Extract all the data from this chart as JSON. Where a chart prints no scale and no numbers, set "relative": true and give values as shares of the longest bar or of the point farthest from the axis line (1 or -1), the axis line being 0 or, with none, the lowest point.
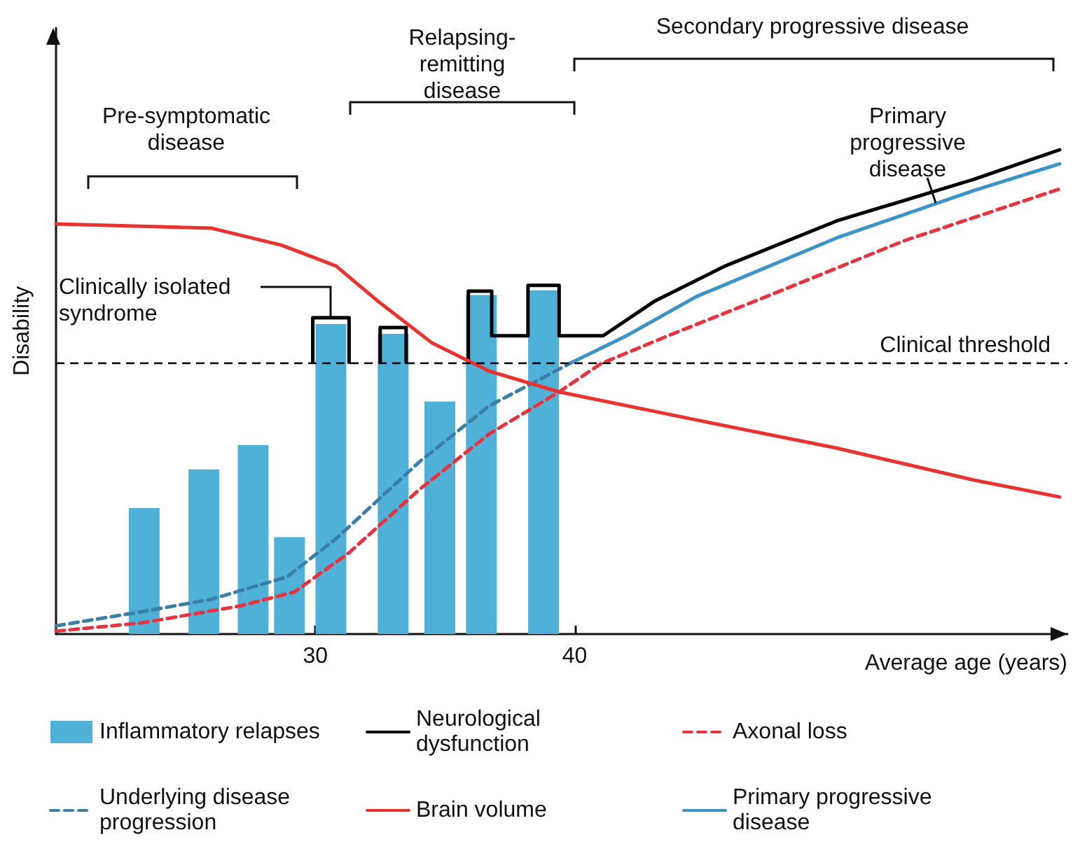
{
  "chart_data": {
    "type": "line",
    "relative": true,
    "ylabel": "Disability",
    "xlabel": "Average age (years)",
    "xlim": [
      20,
      59
    ],
    "xticks": [
      30,
      40
    ],
    "marker": "none",
    "legend": "bottom",
    "series": [
      {
        "name": "Inflammatory relapses",
        "type": "bar",
        "color": "#4fb0d8",
        "x": [
          23.4,
          25.7,
          27.6,
          29.0,
          30.6,
          33.0,
          34.8,
          36.4,
          38.8
        ],
        "values": [
          0.26,
          0.34,
          0.39,
          0.2,
          0.64,
          0.62,
          0.48,
          0.7,
          0.71
        ]
      },
      {
        "name": "Neurological dysfunction",
        "color": "#000000",
        "line_style": "solid",
        "x": [
          29.9,
          29.9,
          31.3,
          31.3,
          31.9,
          32.5,
          32.5,
          33.5,
          33.5,
          34.7,
          35.9,
          35.9,
          36.8,
          36.8,
          38.2,
          38.2,
          39.4,
          39.4,
          41.1,
          43.1,
          45.8,
          50.1,
          55.4,
          58.7
        ],
        "values": [
          0.561,
          0.653,
          0.653,
          0.561,
          null,
          0.561,
          0.633,
          0.633,
          0.561,
          null,
          0.561,
          0.708,
          0.708,
          0.616,
          0.616,
          0.72,
          0.72,
          0.616,
          0.616,
          0.688,
          0.76,
          0.853,
          0.939,
          1
        ]
      },
      {
        "name": "Axonal loss",
        "color": "#e8333f",
        "line_style": "dashed",
        "x": [
          20,
          23.3,
          27.1,
          29.2,
          31.3,
          34.0,
          36.7,
          39.4,
          41.0,
          43.6,
          47.4,
          52.7,
          58.7
        ],
        "values": [
          0.006,
          0.023,
          0.058,
          0.087,
          0.168,
          0.298,
          0.413,
          0.5,
          0.558,
          0.616,
          0.697,
          0.812,
          0.919
        ]
      },
      {
        "name": "Underlying disease progression",
        "color": "#3a7fa8",
        "line_style": "dashed",
        "x": [
          20,
          23.3,
          26.0,
          28.9,
          30.8,
          34.0,
          36.7,
          39.9
        ],
        "values": [
          0.017,
          0.046,
          0.072,
          0.118,
          0.197,
          0.355,
          0.471,
          0.561
        ]
      },
      {
        "name": "Brain volume",
        "color": "#e8332f",
        "line_style": "solid",
        "x": [
          20,
          26.0,
          28.7,
          30.8,
          32.4,
          34.5,
          36.7,
          39.4,
          44.7,
          50.1,
          55.4,
          58.7
        ],
        "values": [
          0.847,
          0.838,
          0.803,
          0.76,
          0.688,
          0.601,
          0.543,
          0.5,
          0.442,
          0.384,
          0.318,
          0.283
        ]
      },
      {
        "name": "Primary progressive disease",
        "color": "#3a94c8",
        "line_style": "solid",
        "x": [
          39.9,
          42.0,
          44.7,
          50.1,
          55.4,
          58.7
        ],
        "values": [
          0.561,
          0.616,
          0.697,
          0.818,
          0.916,
          0.971
        ]
      }
    ],
    "ref_lines": [
      {
        "axis": "y",
        "value": 0.561,
        "label": "Clinical threshold",
        "color": "#000000",
        "line_style": "dashed"
      }
    ],
    "annotations": [
      "Pre-symptomatic disease",
      "Relapsing-remitting disease",
      "Secondary progressive disease",
      "Clinically isolated syndrome",
      "Primary progressive disease"
    ]
  }
}
